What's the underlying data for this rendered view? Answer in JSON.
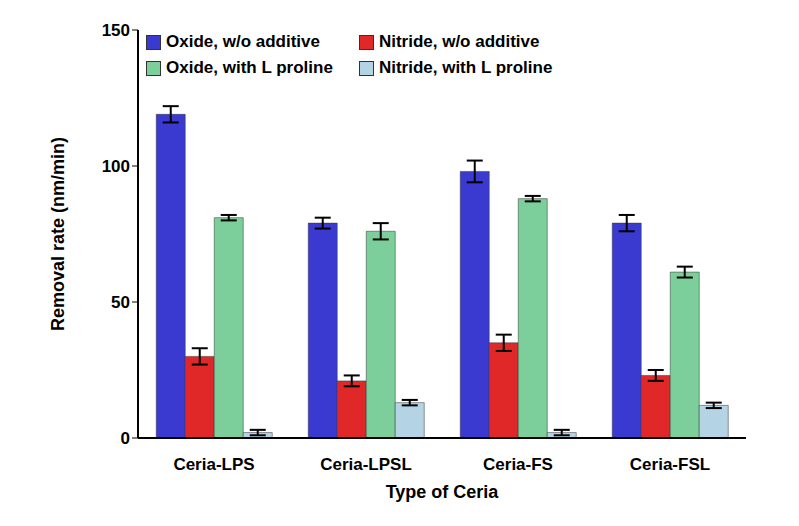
{
  "chart_data": {
    "type": "bar",
    "x_label": "Type of Ceria",
    "y_label": "Removal rate (nm/min)",
    "categories": [
      "Ceria-LPS",
      "Ceria-LPSL",
      "Ceria-FS",
      "Ceria-FSL"
    ],
    "series": [
      {
        "name": "Oxide, w/o additive",
        "color": "#3a3ad0",
        "values": [
          119,
          79,
          98,
          79
        ],
        "errors": [
          3,
          2,
          4,
          3
        ]
      },
      {
        "name": "Nitride, w/o additive",
        "color": "#e02828",
        "values": [
          30,
          21,
          35,
          23
        ],
        "errors": [
          3,
          2,
          3,
          2
        ]
      },
      {
        "name": "Oxide, with L proline",
        "color": "#7ccf9a",
        "values": [
          81,
          76,
          88,
          61
        ],
        "errors": [
          1,
          3,
          1,
          2
        ]
      },
      {
        "name": "Nitride, with L proline",
        "color": "#b4d4e6",
        "values": [
          2,
          13,
          2,
          12
        ],
        "errors": [
          1,
          1,
          1,
          1
        ]
      }
    ],
    "ylim": [
      0,
      150
    ],
    "yticks": [
      0,
      50,
      100,
      150
    ],
    "grid": false,
    "legend": "top"
  }
}
